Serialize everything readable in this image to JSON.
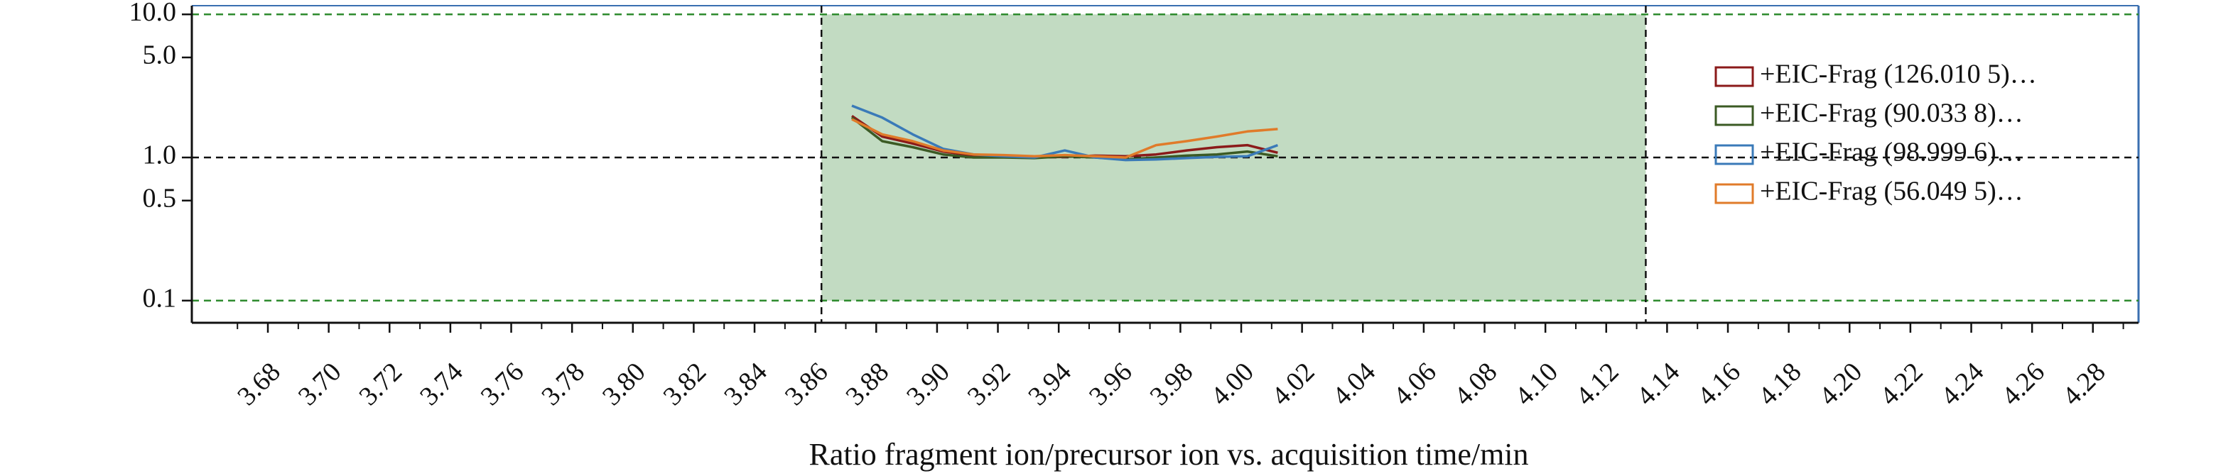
{
  "chart_data": {
    "type": "line",
    "xlabel": "Ratio fragment ion/precursor ion vs. acquisition time/min",
    "ylabel": "",
    "y_scale": "log",
    "ylim": [
      0.07,
      11.5
    ],
    "xlim": [
      3.655,
      4.295
    ],
    "y_ticks": [
      10.0,
      5.0,
      1.0,
      0.5,
      0.1
    ],
    "y_tick_labels": [
      "10.0",
      "5.0",
      "1.0",
      "0.5",
      "0.1"
    ],
    "x_tick_labels": [
      "3.68",
      "3.70",
      "3.72",
      "3.74",
      "3.76",
      "3.78",
      "3.80",
      "3.82",
      "3.84",
      "3.86",
      "3.88",
      "3.90",
      "3.92",
      "3.94",
      "3.96",
      "3.98",
      "4.00",
      "4.02",
      "4.04",
      "4.06",
      "4.08",
      "4.10",
      "4.12",
      "4.14",
      "4.16",
      "4.18",
      "4.20",
      "4.22",
      "4.24",
      "4.26",
      "4.28"
    ],
    "reference_lines": [
      {
        "y": 10.0,
        "color": "#2e8b2e",
        "style": "dashed"
      },
      {
        "y": 1.0,
        "color": "#111111",
        "style": "dashed"
      },
      {
        "y": 0.1,
        "color": "#2e8b2e",
        "style": "dashed"
      }
    ],
    "shaded_region": {
      "x": [
        3.862,
        4.133
      ],
      "y": [
        0.1,
        10.0
      ],
      "color": "#c2dbc2"
    },
    "vertical_markers": [
      3.862,
      4.133
    ],
    "legend_position": "right",
    "series": [
      {
        "name": "+EIC-Frag (126.010 5)…",
        "color": "#8b1a1a",
        "x": [
          3.872,
          3.882,
          3.892,
          3.902,
          3.912,
          3.922,
          3.932,
          3.942,
          3.952,
          3.962,
          3.972,
          3.982,
          3.992,
          4.002,
          4.012
        ],
        "y": [
          1.95,
          1.4,
          1.25,
          1.1,
          1.03,
          1.02,
          1.0,
          1.01,
          1.03,
          1.02,
          1.05,
          1.12,
          1.18,
          1.22,
          1.08
        ]
      },
      {
        "name": "+EIC-Frag (90.033 8)…",
        "color": "#3b5a24",
        "x": [
          3.872,
          3.882,
          3.892,
          3.902,
          3.912,
          3.922,
          3.932,
          3.942,
          3.952,
          3.962,
          3.972,
          3.982,
          3.992,
          4.002,
          4.012
        ],
        "y": [
          1.9,
          1.3,
          1.18,
          1.05,
          1.0,
          1.0,
          0.99,
          1.02,
          1.0,
          0.97,
          1.0,
          1.03,
          1.05,
          1.1,
          1.02
        ]
      },
      {
        "name": "+EIC-Frag (98.999 6)…",
        "color": "#3a7ab8",
        "x": [
          3.872,
          3.882,
          3.892,
          3.902,
          3.912,
          3.922,
          3.932,
          3.942,
          3.952,
          3.962,
          3.972,
          3.982,
          3.992,
          4.002,
          4.012
        ],
        "y": [
          2.3,
          1.9,
          1.45,
          1.15,
          1.05,
          1.02,
          1.0,
          1.12,
          1.0,
          0.96,
          0.97,
          0.99,
          1.01,
          1.02,
          1.22
        ]
      },
      {
        "name": "+EIC-Frag (56.049 5)…",
        "color": "#e07b2a",
        "x": [
          3.872,
          3.882,
          3.892,
          3.902,
          3.912,
          3.922,
          3.932,
          3.942,
          3.952,
          3.962,
          3.972,
          3.982,
          3.992,
          4.002,
          4.012
        ],
        "y": [
          1.85,
          1.45,
          1.3,
          1.12,
          1.05,
          1.04,
          1.02,
          1.04,
          1.02,
          1.0,
          1.22,
          1.3,
          1.4,
          1.52,
          1.58
        ]
      }
    ]
  }
}
